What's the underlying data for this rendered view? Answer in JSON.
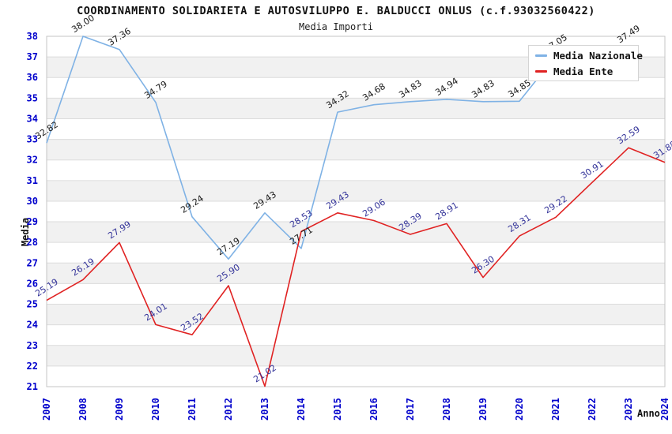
{
  "title": "COORDINAMENTO SOLIDARIETA E AUTOSVILUPPO E. BALDUCCI ONLUS (c.f.93032560422)",
  "subtitle": "Media Importi",
  "axes": {
    "x_label": "Anno",
    "y_label": "Media",
    "y_ticks": [
      21,
      22,
      23,
      24,
      25,
      26,
      27,
      28,
      29,
      30,
      31,
      32,
      33,
      34,
      35,
      36,
      37,
      38
    ],
    "x_ticks": [
      "2007",
      "2008",
      "2009",
      "2010",
      "2011",
      "2012",
      "2013",
      "2014",
      "2015",
      "2016",
      "2017",
      "2018",
      "2019",
      "2020",
      "2021",
      "2022",
      "2023",
      "2024"
    ]
  },
  "legend": {
    "items": [
      {
        "label": "Media Nazionale",
        "color": "#7FB2E5"
      },
      {
        "label": "Media Ente",
        "color": "#E02222"
      }
    ]
  },
  "colors": {
    "band": "#f1f1f1",
    "grid_line": "#dcdcdc",
    "plot_border": "#c4c4c4",
    "tick_text": "#0000CC"
  },
  "chart_data": {
    "type": "line",
    "title": "COORDINAMENTO SOLIDARIETA E AUTOSVILUPPO E. BALDUCCI ONLUS (c.f.93032560422)",
    "subtitle": "Media Importi",
    "xlabel": "Anno",
    "ylabel": "Media",
    "ylim": [
      21,
      38
    ],
    "grid": "horizontal-bands",
    "legend_position": "top-right",
    "categories": [
      2007,
      2008,
      2009,
      2010,
      2011,
      2012,
      2013,
      2014,
      2015,
      2016,
      2017,
      2018,
      2019,
      2020,
      2021,
      2022,
      2023,
      2024
    ],
    "series": [
      {
        "name": "Media Nazionale",
        "color": "#7FB2E5",
        "label_color": "#1a1a1a",
        "values": [
          32.82,
          38.0,
          37.36,
          34.79,
          29.24,
          27.19,
          29.43,
          27.71,
          34.32,
          34.68,
          34.83,
          34.94,
          34.83,
          34.85,
          37.05,
          null,
          37.49,
          null
        ],
        "labels": [
          "32.82",
          "38.00",
          "37.36",
          "34.79",
          "29.24",
          "27.19",
          "29.43",
          "27.71",
          "34.32",
          "34.68",
          "34.83",
          "34.94",
          "34.83",
          "34.85",
          "37.05",
          null,
          "37.49",
          null
        ]
      },
      {
        "name": "Media Ente",
        "color": "#E02222",
        "label_color": "#333399",
        "values": [
          25.19,
          26.19,
          27.99,
          24.01,
          23.52,
          25.9,
          21.02,
          28.53,
          29.43,
          29.06,
          28.39,
          28.91,
          26.3,
          28.31,
          29.22,
          30.91,
          32.59,
          31.88
        ],
        "labels": [
          "25.19",
          "26.19",
          "27.99",
          "24.01",
          "23.52",
          "25.90",
          "21.02",
          "28.53",
          "29.43",
          "29.06",
          "28.39",
          "28.91",
          "26.30",
          "28.31",
          "29.22",
          "30.91",
          "32.59",
          "31.88"
        ]
      }
    ]
  }
}
